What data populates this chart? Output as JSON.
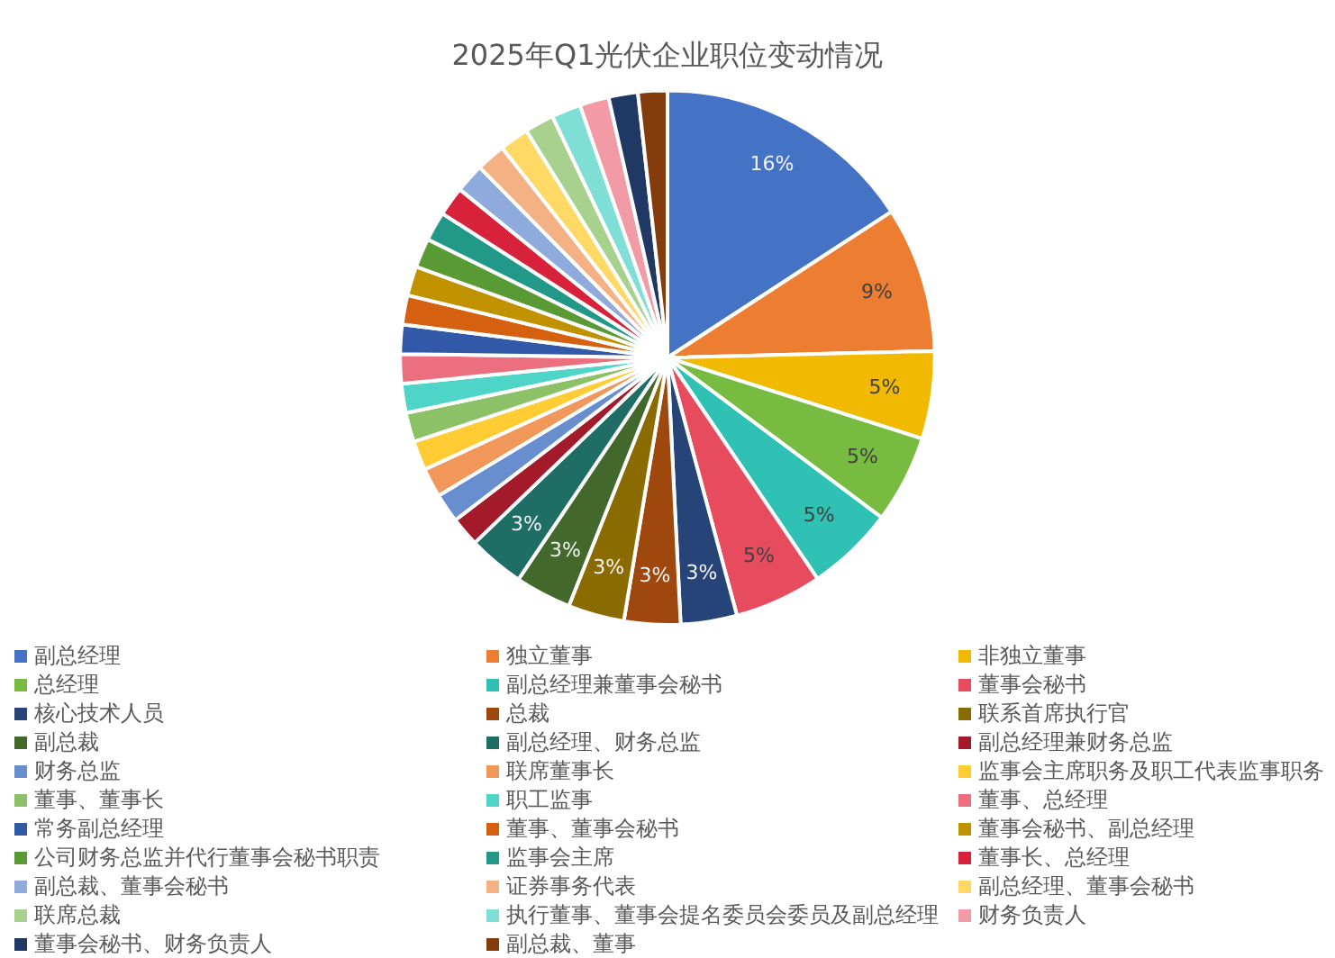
{
  "chart_data": {
    "type": "pie",
    "title": "2025年Q1光伏企业职位变动情况",
    "legend": "bottom",
    "categories": [
      "副总经理",
      "独立董事",
      "非独立董事",
      "总经理",
      "副总经理兼董事会秘书",
      "董事会秘书",
      "核心技术人员",
      "总裁",
      "联系首席执行官",
      "副总裁",
      "副总经理、财务总监",
      "副总经理兼财务总监",
      "财务总监",
      "联席董事长",
      "监事会主席职务及职工代表监事职务",
      "董事、董事长",
      "职工监事",
      "董事、总经理",
      "常务副总经理",
      "董事、董事会秘书",
      "董事会秘书、副总经理",
      "公司财务总监并代行董事会秘书职责",
      "监事会主席",
      "董事长、总经理",
      "副总裁、董事会秘书",
      "证券事务代表",
      "副总经理、董事会秘书",
      "联席总裁",
      "执行董事、董事会提名委员会委员及副总经理",
      "财务负责人",
      "董事会秘书、财务负责人",
      "副总裁、董事"
    ],
    "values": [
      15.8,
      8.8,
      5.3,
      5.3,
      5.3,
      5.3,
      3.4,
      3.4,
      3.4,
      3.4,
      3.4,
      1.77,
      1.77,
      1.77,
      1.77,
      1.77,
      1.77,
      1.77,
      1.77,
      1.77,
      1.77,
      1.77,
      1.77,
      1.77,
      1.77,
      1.77,
      1.77,
      1.77,
      1.77,
      1.77,
      1.77,
      1.77
    ],
    "value_labels": [
      "16%",
      "9%",
      "5%",
      "5%",
      "5%",
      "5%",
      "3%",
      "3%",
      "3%",
      "3%",
      "3%",
      null,
      null,
      null,
      null,
      null,
      null,
      null,
      null,
      null,
      null,
      null,
      null,
      null,
      null,
      null,
      null,
      null,
      null,
      null,
      null,
      null
    ],
    "colors": [
      "#4472c4",
      "#ed7d31",
      "#f1b900",
      "#77bb41",
      "#2fc1b4",
      "#e64c5e",
      "#264478",
      "#9e480e",
      "#8a6b00",
      "#43682b",
      "#1e6e66",
      "#a31a2a",
      "#698ed0",
      "#f1975a",
      "#ffcd33",
      "#8cc168",
      "#4fd4c8",
      "#ec6f7f",
      "#3259a8",
      "#d5600f",
      "#c09200",
      "#5a9a35",
      "#229889",
      "#d8213a",
      "#8faadc",
      "#f4b183",
      "#ffd966",
      "#a9d18e",
      "#7fded5",
      "#f29aa5",
      "#203864",
      "#843c0c"
    ]
  }
}
